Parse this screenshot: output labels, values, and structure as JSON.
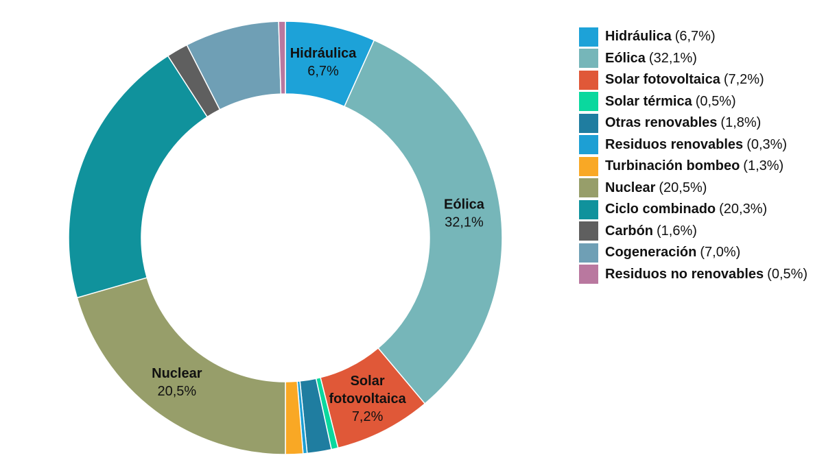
{
  "chart_data": {
    "type": "pie",
    "variant": "donut",
    "legend_position": "right",
    "slices": [
      {
        "name": "Hidráulica",
        "value": 6.7,
        "value_text": "6,7%",
        "color": "#1da2d8",
        "label_lines": [
          "Hidráulica"
        ],
        "show_label": true
      },
      {
        "name": "Eólica",
        "value": 32.1,
        "value_text": "32,1%",
        "color": "#76b6b9",
        "label_lines": [
          "Eólica"
        ],
        "show_label": true
      },
      {
        "name": "Solar fotovoltaica",
        "value": 7.2,
        "value_text": "7,2%",
        "color": "#e05838",
        "label_lines": [
          "Solar",
          "fotovoltaica"
        ],
        "show_label": true
      },
      {
        "name": "Solar térmica",
        "value": 0.5,
        "value_text": "0,5%",
        "color": "#0ad89e",
        "label_lines": [
          "Solar térmica"
        ],
        "show_label": false
      },
      {
        "name": "Otras renovables",
        "value": 1.8,
        "value_text": "1,8%",
        "color": "#1f7da0",
        "label_lines": [
          "Otras renovables"
        ],
        "show_label": false
      },
      {
        "name": "Residuos renovables",
        "value": 0.3,
        "value_text": "0,3%",
        "color": "#1d9fd4",
        "label_lines": [
          "Residuos renovables"
        ],
        "show_label": false
      },
      {
        "name": "Turbinación bombeo",
        "value": 1.3,
        "value_text": "1,3%",
        "color": "#f9a825",
        "label_lines": [
          "Turbinación bombeo"
        ],
        "show_label": false
      },
      {
        "name": "Nuclear",
        "value": 20.5,
        "value_text": "20,5%",
        "color": "#979e6a",
        "label_lines": [
          "Nuclear"
        ],
        "show_label": true
      },
      {
        "name": "Ciclo combinado",
        "value": 20.3,
        "value_text": "20,3%",
        "color": "#10929c",
        "label_lines": [
          "Ciclo combinado"
        ],
        "show_label": false
      },
      {
        "name": "Carbón",
        "value": 1.6,
        "value_text": "1,6%",
        "color": "#5f5f5f",
        "label_lines": [
          "Carbón"
        ],
        "show_label": false
      },
      {
        "name": "Cogeneración",
        "value": 7.0,
        "value_text": "7,0%",
        "color": "#6f9fb5",
        "label_lines": [
          "Cogeneración"
        ],
        "show_label": false
      },
      {
        "name": "Residuos no renovables",
        "value": 0.5,
        "value_text": "0,5%",
        "color": "#b9789f",
        "label_lines": [
          "Residuos no renovables"
        ],
        "show_label": false
      }
    ]
  }
}
